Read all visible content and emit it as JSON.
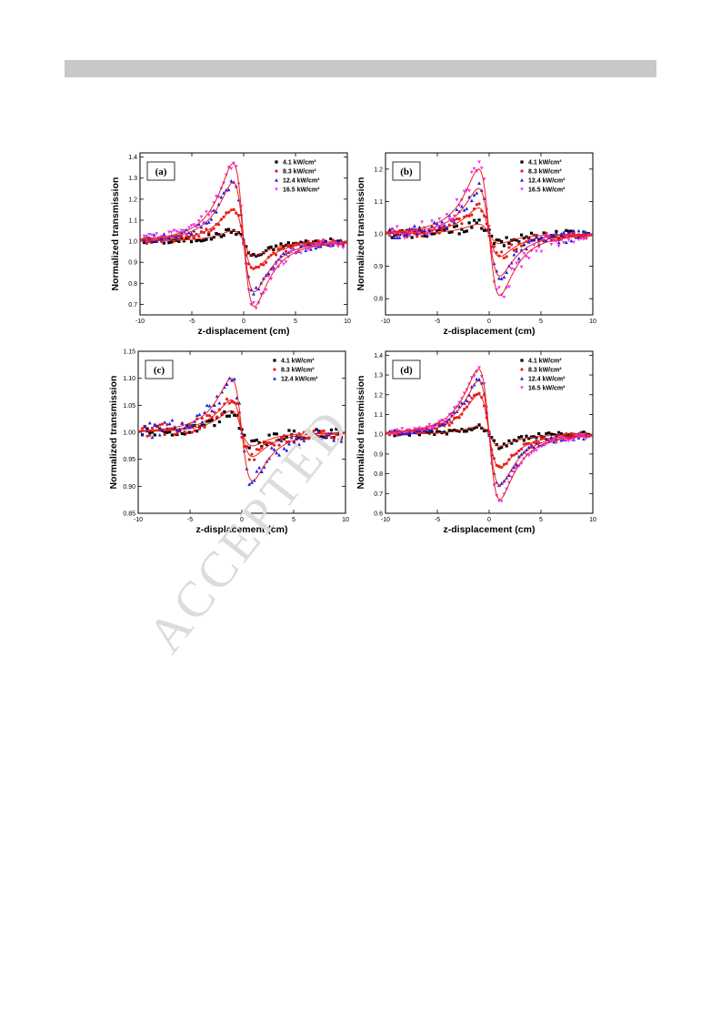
{
  "header": {
    "bar_color": "#c8c8c8"
  },
  "watermark": {
    "text": "ACCEPTED"
  },
  "colors": {
    "s1": "#000000",
    "s2": "#e8201c",
    "s3": "#1a1ae6",
    "s4": "#ee33ee",
    "fit": "#e8201c"
  },
  "chart_data": [
    {
      "type": "scatter",
      "panel_label": "(a)",
      "xlabel": "z-displacement (cm)",
      "ylabel": "Normalized transmission",
      "xlim": [
        -10,
        10
      ],
      "ylim": [
        0.65,
        1.42
      ],
      "xticks": [
        -10,
        -5,
        0,
        5,
        10
      ],
      "yticks": [
        0.7,
        0.8,
        0.9,
        1.0,
        1.1,
        1.2,
        1.3,
        1.4
      ],
      "ytick_labels": [
        "0.7",
        "0.8",
        "0.9",
        "1.0",
        "1.1",
        "1.2",
        "1.3",
        "1.4"
      ],
      "legend": "top-right",
      "series": [
        {
          "name": "4.1 kW/cm²",
          "marker": "square",
          "peak": 1.05,
          "valley": 0.93,
          "noise": 0.012
        },
        {
          "name": "8.3 kW/cm²",
          "marker": "circle",
          "peak": 1.15,
          "valley": 0.87,
          "noise": 0.012
        },
        {
          "name": "12.4 kW/cm²",
          "marker": "triangle",
          "peak": 1.28,
          "valley": 0.76,
          "noise": 0.015
        },
        {
          "name": "16.5 kW/cm²",
          "marker": "triangle-down",
          "peak": 1.37,
          "valley": 0.69,
          "noise": 0.018
        }
      ]
    },
    {
      "type": "scatter",
      "panel_label": "(b)",
      "xlabel": "z-displacement (cm)",
      "ylabel": "Normalized transmission",
      "xlim": [
        -10,
        10
      ],
      "ylim": [
        0.75,
        1.25
      ],
      "xticks": [
        -10,
        -5,
        0,
        5,
        10
      ],
      "yticks": [
        0.8,
        0.9,
        1.0,
        1.1,
        1.2
      ],
      "ytick_labels": [
        "0.8",
        "0.9",
        "1.0",
        "1.1",
        "1.2"
      ],
      "legend": "top-right",
      "series": [
        {
          "name": "4.1 kW/cm²",
          "marker": "square",
          "peak": 1.03,
          "valley": 0.97,
          "noise": 0.012
        },
        {
          "name": "8.3 kW/cm²",
          "marker": "circle",
          "peak": 1.08,
          "valley": 0.93,
          "noise": 0.012
        },
        {
          "name": "12.4 kW/cm²",
          "marker": "triangle",
          "peak": 1.14,
          "valley": 0.87,
          "noise": 0.015
        },
        {
          "name": "16.5 kW/cm²",
          "marker": "triangle-down",
          "peak": 1.2,
          "valley": 0.81,
          "noise": 0.02
        }
      ]
    },
    {
      "type": "scatter",
      "panel_label": "(c)",
      "xlabel": "z-displacement (cm)",
      "ylabel": "Normalized transmission",
      "xlim": [
        -10,
        10
      ],
      "ylim": [
        0.85,
        1.15
      ],
      "xticks": [
        -10,
        -5,
        0,
        5,
        10
      ],
      "yticks": [
        0.85,
        0.9,
        0.95,
        1.0,
        1.05,
        1.1,
        1.15
      ],
      "ytick_labels": [
        "0.85",
        "0.90",
        "0.95",
        "1.00",
        "1.05",
        "1.10",
        "1.15"
      ],
      "legend": "top-right",
      "series": [
        {
          "name": "4.1 kW/cm²",
          "marker": "square",
          "peak": 1.04,
          "valley": 0.975,
          "noise": 0.008
        },
        {
          "name": "8.3 kW/cm²",
          "marker": "circle",
          "peak": 1.06,
          "valley": 0.955,
          "noise": 0.01
        },
        {
          "name": "12.4 kW/cm²",
          "marker": "triangle",
          "peak": 1.1,
          "valley": 0.91,
          "noise": 0.012
        }
      ]
    },
    {
      "type": "scatter",
      "panel_label": "(d)",
      "xlabel": "z-displacement (cm)",
      "ylabel": "Normalized transmission",
      "xlim": [
        -10,
        10
      ],
      "ylim": [
        0.6,
        1.42
      ],
      "xticks": [
        -10,
        -5,
        0,
        5,
        10
      ],
      "yticks": [
        0.6,
        0.7,
        0.8,
        0.9,
        1.0,
        1.1,
        1.2,
        1.3,
        1.4
      ],
      "ytick_labels": [
        "0.6",
        "0.7",
        "0.8",
        "0.9",
        "1.0",
        "1.1",
        "1.2",
        "1.3",
        "1.4"
      ],
      "legend": "top-right",
      "series": [
        {
          "name": "4.1 kW/cm²",
          "marker": "square",
          "peak": 1.04,
          "valley": 0.94,
          "noise": 0.012
        },
        {
          "name": "8.3 kW/cm²",
          "marker": "circle",
          "peak": 1.2,
          "valley": 0.83,
          "noise": 0.012
        },
        {
          "name": "12.4 kW/cm²",
          "marker": "triangle",
          "peak": 1.27,
          "valley": 0.74,
          "noise": 0.012
        },
        {
          "name": "16.5 kW/cm²",
          "marker": "triangle-down",
          "peak": 1.33,
          "valley": 0.67,
          "noise": 0.012
        }
      ]
    }
  ]
}
